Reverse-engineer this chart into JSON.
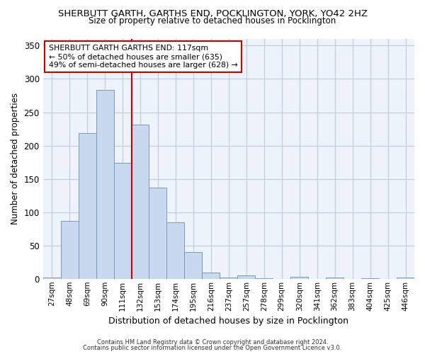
{
  "title": "SHERBUTT GARTH, GARTHS END, POCKLINGTON, YORK, YO42 2HZ",
  "subtitle": "Size of property relative to detached houses in Pocklington",
  "xlabel": "Distribution of detached houses by size in Pocklington",
  "ylabel": "Number of detached properties",
  "bar_color": "#c8d8ee",
  "bar_edge_color": "#7799bb",
  "categories": [
    "27sqm",
    "48sqm",
    "69sqm",
    "90sqm",
    "111sqm",
    "132sqm",
    "153sqm",
    "174sqm",
    "195sqm",
    "216sqm",
    "237sqm",
    "257sqm",
    "278sqm",
    "299sqm",
    "320sqm",
    "341sqm",
    "362sqm",
    "383sqm",
    "404sqm",
    "425sqm",
    "446sqm"
  ],
  "values": [
    2,
    87,
    219,
    284,
    174,
    231,
    137,
    85,
    40,
    9,
    2,
    5,
    1,
    0,
    3,
    0,
    2,
    0,
    1,
    0,
    2
  ],
  "vline_index": 4,
  "vline_color": "#cc0000",
  "annotation_text": "SHERBUTT GARTH GARTHS END: 117sqm\n← 50% of detached houses are smaller (635)\n49% of semi-detached houses are larger (628) →",
  "annotation_box_color": "white",
  "annotation_box_edge": "#cc0000",
  "footer1": "Contains HM Land Registry data © Crown copyright and database right 2024.",
  "footer2": "Contains public sector information licensed under the Open Government Licence v3.0.",
  "ylim": [
    0,
    360
  ],
  "bg_color": "#eef2fb",
  "grid_color": "#c0ccdd"
}
